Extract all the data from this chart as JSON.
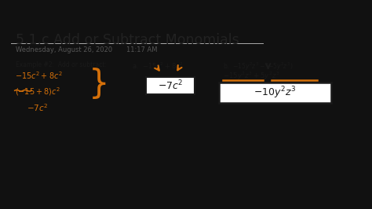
{
  "bg_color": "#111111",
  "slide_bg": "#f0f0f0",
  "title": "5.1.c Add or Subtract Monomials",
  "title_color": "#222222",
  "title_fontsize": 12.5,
  "date_text": "Wednesday, August 26, 2020",
  "time_text": "11:17 AM",
  "meta_fontsize": 6.0,
  "meta_color": "#555555",
  "orange": "#d4700a",
  "black": "#1a1a1a"
}
